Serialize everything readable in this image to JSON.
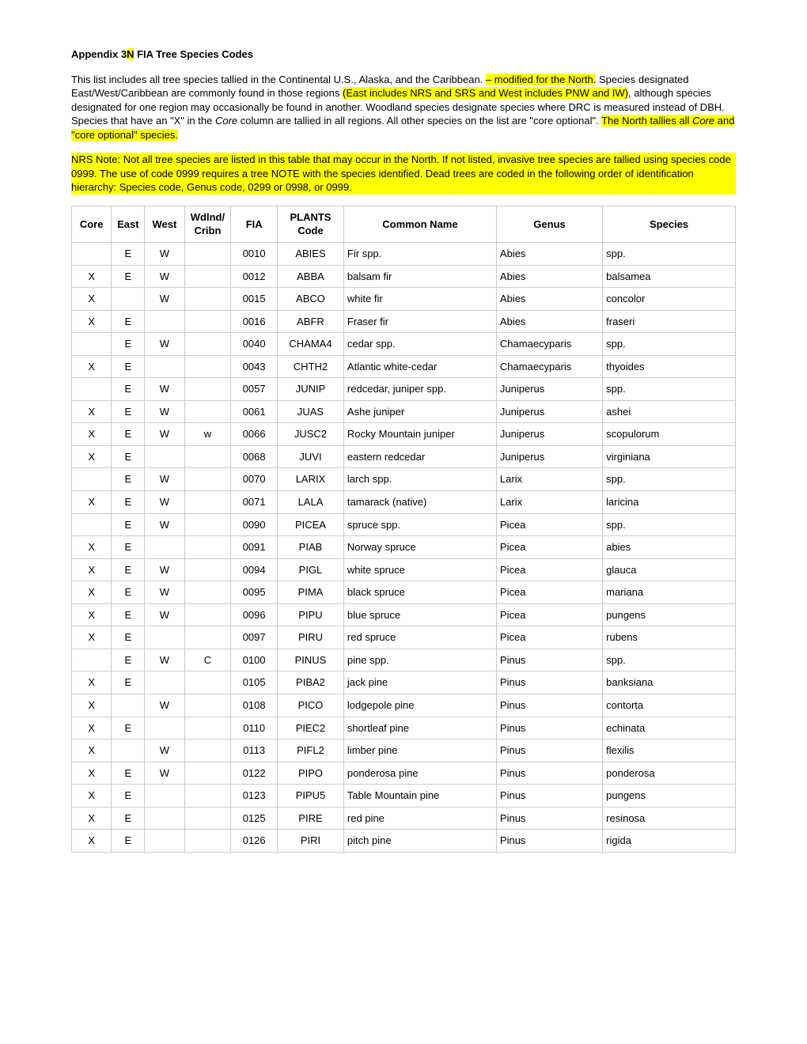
{
  "title_prefix": "Appendix 3",
  "title_hl": "N",
  "title_suffix": "   FIA Tree Species Codes",
  "p1_a": "This list includes all tree species tallied in the Continental U.S., Alaska, and the Caribbean. ",
  "p1_b": "– modified for the North.",
  "p1_c": "  Species designated East/West/Caribbean are commonly found in those regions ",
  "p1_d": "(East includes NRS and SRS and West includes PNW and IW)",
  "p1_e": ", although species designated for one region may occasionally be found in another. Woodland species designate species where DRC is measured instead of DBH. Species that have an \"X\" in the ",
  "p1_f": "Core",
  "p1_g": " column are tallied in all regions. All other species on the list are \"core optional\".  ",
  "p1_h": "The North tallies all ",
  "p1_i": "Core",
  "p1_j": " and \"core optional\" species.",
  "p2": "NRS Note:  Not all tree species are listed in this table that may occur in the North.   If not listed, invasive tree species are tallied using species code 0999.  The use of code 0999 requires a tree NOTE with the species identified.  Dead trees are coded in the following order of identification hierarchy:  Species code, Genus code, 0299 or 0998, or 0999.",
  "columns": [
    "Core",
    "East",
    "West",
    "Wdlnd/\nCribn",
    "FIA",
    "PLANTS Code",
    "Common Name",
    "Genus",
    "Species"
  ],
  "rows": [
    [
      "",
      "E",
      "W",
      "",
      "0010",
      "ABIES",
      "Fir spp.",
      "Abies",
      "spp."
    ],
    [
      "X",
      "E",
      "W",
      "",
      "0012",
      "ABBA",
      "balsam fir",
      "Abies",
      "balsamea"
    ],
    [
      "X",
      "",
      "W",
      "",
      "0015",
      "ABCO",
      "white fir",
      "Abies",
      "concolor"
    ],
    [
      "X",
      "E",
      "",
      "",
      "0016",
      "ABFR",
      "Fraser fir",
      "Abies",
      "fraseri"
    ],
    [
      "",
      "E",
      "W",
      "",
      "0040",
      "CHAMA4",
      "cedar spp.",
      "Chamaecyparis",
      "spp."
    ],
    [
      "X",
      "E",
      "",
      "",
      "0043",
      "CHTH2",
      "Atlantic white-cedar",
      "Chamaecyparis",
      "thyoides"
    ],
    [
      "",
      "E",
      "W",
      "",
      "0057",
      "JUNIP",
      "redcedar,  juniper spp.",
      "Juniperus",
      "spp."
    ],
    [
      "X",
      "E",
      "W",
      "",
      "0061",
      "JUAS",
      "Ashe juniper",
      "Juniperus",
      "ashei"
    ],
    [
      "X",
      "E",
      "W",
      "w",
      "0066",
      "JUSC2",
      "Rocky Mountain juniper",
      "Juniperus",
      "scopulorum"
    ],
    [
      "X",
      "E",
      "",
      "",
      "0068",
      "JUVI",
      "eastern redcedar",
      "Juniperus",
      "virginiana"
    ],
    [
      "",
      "E",
      "W",
      "",
      "0070",
      "LARIX",
      "larch spp.",
      "Larix",
      "spp."
    ],
    [
      "X",
      "E",
      "W",
      "",
      "0071",
      "LALA",
      "tamarack (native)",
      "Larix",
      "laricina"
    ],
    [
      "",
      "E",
      "W",
      "",
      "0090",
      "PICEA",
      "spruce spp.",
      "Picea",
      "spp."
    ],
    [
      "X",
      "E",
      "",
      "",
      "0091",
      "PIAB",
      "Norway spruce",
      "Picea",
      "abies"
    ],
    [
      "X",
      "E",
      "W",
      "",
      "0094",
      "PIGL",
      "white spruce",
      "Picea",
      "glauca"
    ],
    [
      "X",
      "E",
      "W",
      "",
      "0095",
      "PIMA",
      "black spruce",
      "Picea",
      "mariana"
    ],
    [
      "X",
      "E",
      "W",
      "",
      "0096",
      "PIPU",
      "blue spruce",
      "Picea",
      "pungens"
    ],
    [
      "X",
      "E",
      "",
      "",
      "0097",
      "PIRU",
      "red spruce",
      "Picea",
      "rubens"
    ],
    [
      "",
      "E",
      "W",
      "C",
      "0100",
      "PINUS",
      "pine spp.",
      "Pinus",
      "spp."
    ],
    [
      "X",
      "E",
      "",
      "",
      "0105",
      "PIBA2",
      "jack pine",
      "Pinus",
      "banksiana"
    ],
    [
      "X",
      "",
      "W",
      "",
      "0108",
      "PICO",
      "lodgepole pine",
      "Pinus",
      "contorta"
    ],
    [
      "X",
      "E",
      "",
      "",
      "0110",
      "PIEC2",
      "shortleaf pine",
      "Pinus",
      "echinata"
    ],
    [
      "X",
      "",
      "W",
      "",
      "0113",
      "PIFL2",
      "limber pine",
      "Pinus",
      "flexilis"
    ],
    [
      "X",
      "E",
      "W",
      "",
      "0122",
      "PIPO",
      "ponderosa pine",
      "Pinus",
      "ponderosa"
    ],
    [
      "X",
      "E",
      "",
      "",
      "0123",
      "PIPU5",
      "Table Mountain pine",
      "Pinus",
      "pungens"
    ],
    [
      "X",
      "E",
      "",
      "",
      "0125",
      "PIRE",
      "red pine",
      "Pinus",
      "resinosa"
    ],
    [
      "X",
      "E",
      "",
      "",
      "0126",
      "PIRI",
      "pitch pine",
      "Pinus",
      "rigida"
    ]
  ],
  "col_align": [
    "c",
    "c",
    "c",
    "c",
    "c",
    "c",
    "l",
    "l",
    "l"
  ]
}
